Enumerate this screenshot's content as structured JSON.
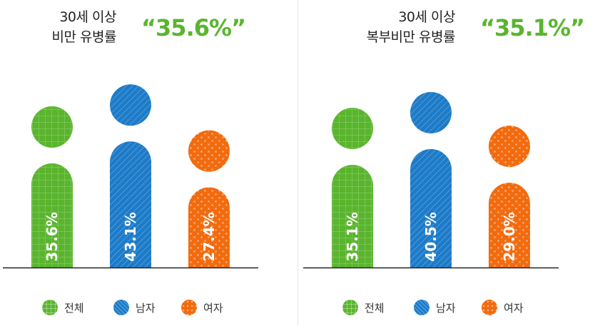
{
  "colors": {
    "total": "#5ab52e",
    "male": "#1d7bc8",
    "female": "#f26b0f",
    "headline": "#5ab52e"
  },
  "panels": [
    {
      "title_line1": "30세 이상",
      "title_line2": "비만 유병률",
      "headline": "“35.6%”"
    },
    {
      "title_line1": "30세 이상",
      "title_line2": "복부비만 유병률",
      "headline": "“35.1%”"
    }
  ],
  "legend": [
    {
      "label": "전체",
      "key": "total",
      "pattern": "grid"
    },
    {
      "label": "남자",
      "key": "male",
      "pattern": "hatch"
    },
    {
      "label": "여자",
      "key": "female",
      "pattern": "dots"
    }
  ],
  "chart_data": [
    {
      "type": "bar",
      "title": "30세 이상 비만 유병률",
      "categories": [
        "전체",
        "남자",
        "여자"
      ],
      "values": [
        35.6,
        43.1,
        27.4
      ],
      "labels": [
        "35.6%",
        "43.1%",
        "27.4%"
      ],
      "unit": "%"
    },
    {
      "type": "bar",
      "title": "30세 이상 복부비만 유병률",
      "categories": [
        "전체",
        "남자",
        "여자"
      ],
      "values": [
        35.1,
        40.5,
        29.0
      ],
      "labels": [
        "35.1%",
        "40.5%",
        "29.0%"
      ],
      "unit": "%"
    }
  ]
}
